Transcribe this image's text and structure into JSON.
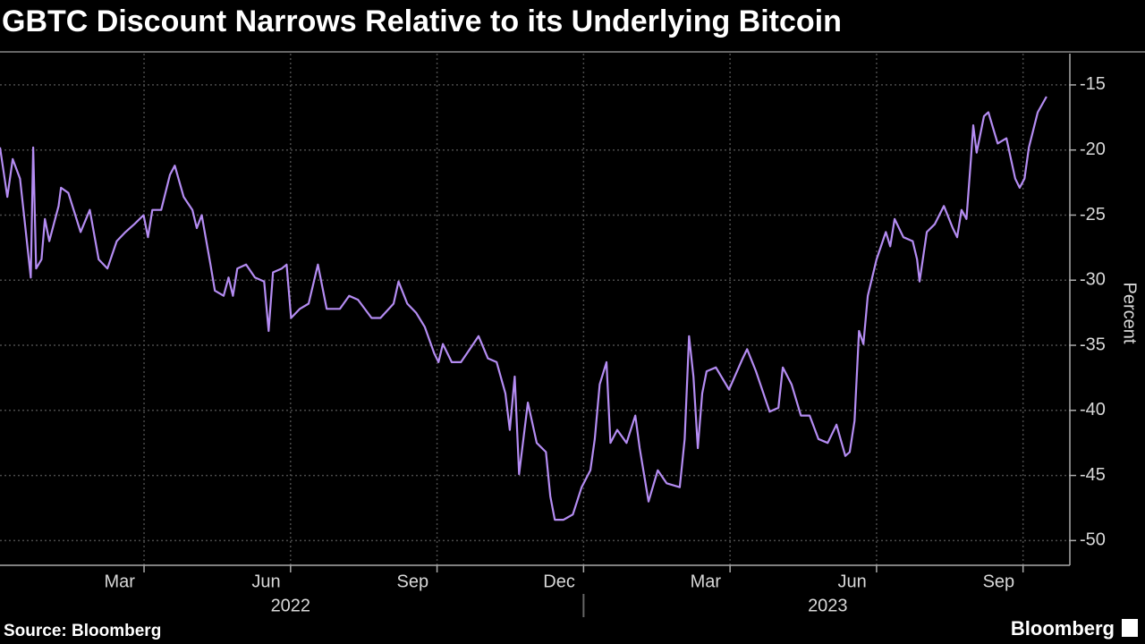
{
  "chart_data": {
    "type": "line",
    "title": "GBTC Discount Narrows Relative to its Underlying Bitcoin",
    "y_label": "Percent",
    "source": "Source: Bloomberg",
    "brand": "Bloomberg",
    "x": [
      0.05,
      0.2,
      0.31,
      0.46,
      0.6,
      0.68,
      0.73,
      0.79,
      0.9,
      0.97,
      1.06,
      1.25,
      1.3,
      1.45,
      1.7,
      1.89,
      2.07,
      2.25,
      2.44,
      2.62,
      2.8,
      2.99,
      3.08,
      3.17,
      3.35,
      3.53,
      3.63,
      3.81,
      3.99,
      4.08,
      4.18,
      4.36,
      4.45,
      4.63,
      4.73,
      4.82,
      4.91,
      5.09,
      5.27,
      5.46,
      5.55,
      5.64,
      5.82,
      5.92,
      6.01,
      6.19,
      6.37,
      6.56,
      6.74,
      7.01,
      7.2,
      7.38,
      7.66,
      7.84,
      8.11,
      8.21,
      8.39,
      8.57,
      8.75,
      8.94,
      9.03,
      9.12,
      9.3,
      9.49,
      9.67,
      9.85,
      10.04,
      10.22,
      10.4,
      10.49,
      10.59,
      10.68,
      10.86,
      11.04,
      11.23,
      11.32,
      11.41,
      11.59,
      11.78,
      11.96,
      12.14,
      12.23,
      12.33,
      12.47,
      12.55,
      12.69,
      12.88,
      13.06,
      13.15,
      13.33,
      13.52,
      13.7,
      13.97,
      14.07,
      14.16,
      14.25,
      14.34,
      14.43,
      14.52,
      14.71,
      14.98,
      15.26,
      15.35,
      15.53,
      15.81,
      15.99,
      16.08,
      16.26,
      16.45,
      16.63,
      16.81,
      17.0,
      17.18,
      17.36,
      17.45,
      17.55,
      17.64,
      17.73,
      17.82,
      18.0,
      18.19,
      18.28,
      18.37,
      18.55,
      18.74,
      18.83,
      18.88,
      19.03,
      19.19,
      19.38,
      19.56,
      19.65,
      19.74,
      19.84,
      19.93,
      19.98,
      20.05,
      20.2,
      20.29,
      20.48,
      20.66,
      20.84,
      20.93,
      21.03,
      21.12,
      21.3,
      21.48
    ],
    "series": [
      {
        "color": "#b48cf2",
        "values": [
          -19.8,
          -23.6,
          -20.7,
          -22.2,
          -27.0,
          -29.8,
          -19.8,
          -29.1,
          -28.4,
          -25.3,
          -27.0,
          -24.3,
          -22.9,
          -23.3,
          -26.3,
          -24.6,
          -28.4,
          -29.1,
          -27.0,
          -26.3,
          -25.7,
          -25.0,
          -26.7,
          -24.6,
          -24.6,
          -21.9,
          -21.2,
          -23.6,
          -24.6,
          -26.0,
          -25.0,
          -28.8,
          -30.8,
          -31.2,
          -29.8,
          -31.2,
          -29.1,
          -28.8,
          -29.8,
          -30.1,
          -33.9,
          -29.4,
          -29.1,
          -28.8,
          -32.9,
          -32.2,
          -31.8,
          -28.8,
          -32.2,
          -32.2,
          -31.2,
          -31.5,
          -32.9,
          -32.9,
          -31.8,
          -30.1,
          -31.8,
          -32.5,
          -33.6,
          -35.6,
          -36.3,
          -34.9,
          -36.3,
          -36.3,
          -35.3,
          -34.3,
          -36.0,
          -36.3,
          -38.7,
          -41.5,
          -37.4,
          -44.9,
          -39.4,
          -42.5,
          -43.2,
          -46.6,
          -48.4,
          -48.4,
          -48.0,
          -45.9,
          -44.6,
          -42.2,
          -38.0,
          -36.3,
          -42.5,
          -41.5,
          -42.5,
          -40.4,
          -42.9,
          -47.0,
          -44.6,
          -45.6,
          -45.9,
          -42.2,
          -34.3,
          -37.4,
          -42.9,
          -38.7,
          -37.0,
          -36.7,
          -38.4,
          -36.0,
          -35.3,
          -37.0,
          -40.1,
          -39.8,
          -36.7,
          -38.0,
          -40.4,
          -40.4,
          -42.2,
          -42.5,
          -41.1,
          -43.5,
          -43.2,
          -40.8,
          -33.9,
          -34.9,
          -31.2,
          -28.4,
          -26.3,
          -27.4,
          -25.3,
          -26.7,
          -27.0,
          -28.4,
          -30.1,
          -26.3,
          -25.7,
          -24.3,
          -26.0,
          -26.7,
          -24.6,
          -25.3,
          -20.8,
          -18.1,
          -20.2,
          -17.4,
          -17.1,
          -19.5,
          -19.1,
          -22.2,
          -22.9,
          -22.2,
          -19.8,
          -17.1,
          -15.9
        ]
      }
    ],
    "xlim": [
      0.05,
      21.94
    ],
    "xticks": [
      {
        "value": 2.5,
        "label": "Mar"
      },
      {
        "value": 5.5,
        "label": "Jun"
      },
      {
        "value": 8.5,
        "label": "Sep"
      },
      {
        "value": 11.5,
        "label": "Dec"
      },
      {
        "value": 14.5,
        "label": "Mar"
      },
      {
        "value": 17.5,
        "label": "Jun"
      },
      {
        "value": 20.5,
        "label": "Sep"
      }
    ],
    "xgrid": [
      3,
      6,
      9,
      12,
      15,
      18,
      21
    ],
    "year_ticks": [
      {
        "value": 6,
        "label": "2022"
      },
      {
        "value": 17,
        "label": "2023"
      }
    ],
    "year_separators": [
      12
    ],
    "ylim": [
      -51.9,
      -12.6
    ],
    "yticks": [
      -15,
      -20,
      -25,
      -30,
      -35,
      -40,
      -45,
      -50
    ],
    "grid": true
  }
}
